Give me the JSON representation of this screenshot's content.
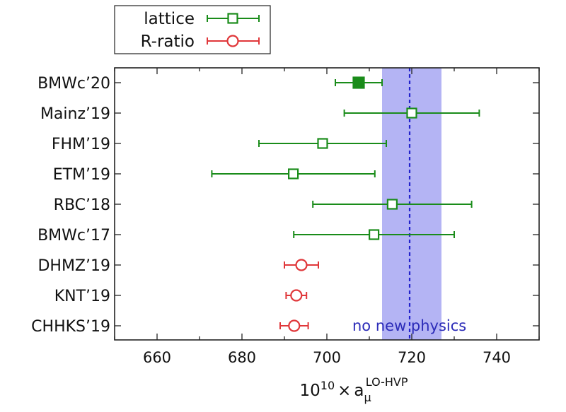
{
  "chart_data": {
    "type": "scatter",
    "xlabel": {
      "base": "10",
      "exponent": "10",
      "times": "×",
      "symbol": "a",
      "subscript": "μ",
      "superscript": "LO-HVP"
    },
    "ylabel": "",
    "xlim": [
      650,
      750
    ],
    "xticks": [
      "660",
      "680",
      "700",
      "720",
      "740"
    ],
    "categories": [
      "BMWc’20",
      "Mainz’19",
      "FHM’19",
      "ETM’19",
      "RBC’18",
      "BMWc’17",
      "DHMZ’19",
      "KNT’19",
      "CHHKS’19"
    ],
    "legend": {
      "placement": "top-left-outside",
      "entries": [
        {
          "label": "lattice",
          "marker": "square",
          "color": "#1a8c1a"
        },
        {
          "label": "R-ratio",
          "marker": "circle",
          "color": "#e0373a"
        }
      ]
    },
    "series": [
      {
        "name": "lattice",
        "color": "#1a8c1a",
        "marker": "square",
        "points": [
          {
            "label": "BMWc’20",
            "value": 707.5,
            "err_low": 5.5,
            "err_high": 5.5,
            "filled": true
          },
          {
            "label": "Mainz’19",
            "value": 720.0,
            "err_low": 15.9,
            "err_high": 15.9,
            "filled": false
          },
          {
            "label": "FHM’19",
            "value": 699.0,
            "err_low": 15.0,
            "err_high": 15.0,
            "filled": false
          },
          {
            "label": "ETM’19",
            "value": 692.1,
            "err_low": 19.2,
            "err_high": 19.2,
            "filled": false
          },
          {
            "label": "RBC’18",
            "value": 715.4,
            "err_low": 18.7,
            "err_high": 18.7,
            "filled": false
          },
          {
            "label": "BMWc’17",
            "value": 711.1,
            "err_low": 18.9,
            "err_high": 18.9,
            "filled": false
          }
        ]
      },
      {
        "name": "R-ratio",
        "color": "#e0373a",
        "marker": "circle",
        "points": [
          {
            "label": "DHMZ’19",
            "value": 694.0,
            "err_low": 4.0,
            "err_high": 4.0,
            "filled": false
          },
          {
            "label": "KNT’19",
            "value": 692.8,
            "err_low": 2.4,
            "err_high": 2.4,
            "filled": false
          },
          {
            "label": "CHHKS’19",
            "value": 692.3,
            "err_low": 3.3,
            "err_high": 3.3,
            "filled": false
          }
        ]
      }
    ],
    "band": {
      "from": 713,
      "to": 727,
      "color": "#b4b4f4"
    },
    "reference_line": {
      "value": 719.5,
      "color": "#2222cc",
      "style": "dashed"
    },
    "annotation": {
      "text": "no new physics",
      "color": "#2b2bb8",
      "at_value": 714
    }
  }
}
